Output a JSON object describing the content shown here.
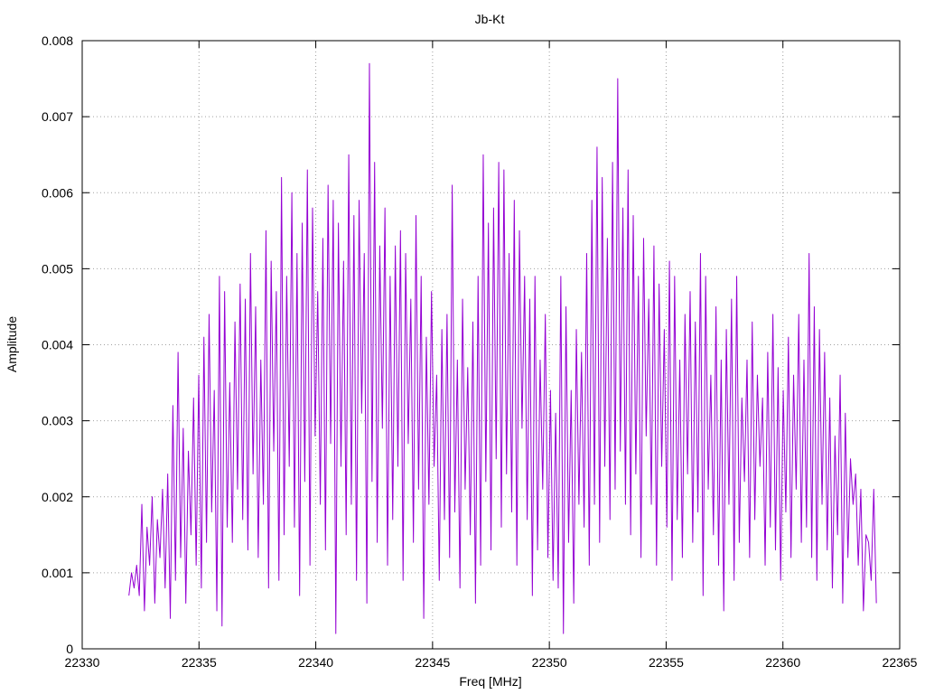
{
  "chart_data": {
    "type": "line",
    "title": "Jb-Kt",
    "xlabel": "Freq [MHz]",
    "ylabel": "Amplitude",
    "xlim": [
      22330,
      22365
    ],
    "ylim": [
      0,
      0.008
    ],
    "x_ticks": [
      "22330",
      "22335",
      "22340",
      "22345",
      "22350",
      "22355",
      "22360",
      "22365"
    ],
    "y_ticks": [
      "0",
      "0.001",
      "0.002",
      "0.003",
      "0.004",
      "0.005",
      "0.006",
      "0.007",
      "0.008"
    ],
    "grid": true,
    "series_color": "#9400d3",
    "x_start": 22332.0,
    "x_end": 22364.0,
    "series": [
      {
        "values": [
          0.0007,
          0.001,
          0.0008,
          0.0011,
          0.0007,
          0.0019,
          0.0005,
          0.0016,
          0.0011,
          0.002,
          0.0006,
          0.0017,
          0.0012,
          0.0021,
          0.0008,
          0.0023,
          0.0004,
          0.0032,
          0.0009,
          0.0039,
          0.0012,
          0.0029,
          0.0006,
          0.0026,
          0.0015,
          0.0033,
          0.0011,
          0.0036,
          0.0008,
          0.0041,
          0.0014,
          0.0044,
          0.0018,
          0.0034,
          0.0005,
          0.0049,
          0.0003,
          0.0047,
          0.0016,
          0.0035,
          0.0014,
          0.0043,
          0.0021,
          0.0048,
          0.0017,
          0.0046,
          0.0013,
          0.0052,
          0.0023,
          0.0045,
          0.0012,
          0.0038,
          0.0019,
          0.0055,
          0.0008,
          0.0051,
          0.0026,
          0.0047,
          0.0009,
          0.0062,
          0.0015,
          0.0049,
          0.0024,
          0.006,
          0.0016,
          0.0052,
          0.0007,
          0.0056,
          0.0022,
          0.0063,
          0.0011,
          0.0058,
          0.0028,
          0.0047,
          0.0019,
          0.0054,
          0.0013,
          0.0061,
          0.0027,
          0.0059,
          0.0002,
          0.0056,
          0.0024,
          0.0051,
          0.0015,
          0.0065,
          0.0019,
          0.0057,
          0.0009,
          0.0059,
          0.0031,
          0.0052,
          0.0006,
          0.0077,
          0.0022,
          0.0064,
          0.0014,
          0.0053,
          0.0029,
          0.0058,
          0.0011,
          0.0049,
          0.0017,
          0.0053,
          0.0024,
          0.0055,
          0.0009,
          0.0052,
          0.0027,
          0.0046,
          0.0014,
          0.0057,
          0.0021,
          0.0049,
          0.0004,
          0.0041,
          0.0019,
          0.0047,
          0.0024,
          0.0036,
          0.0009,
          0.0042,
          0.0017,
          0.0044,
          0.0012,
          0.0061,
          0.0018,
          0.0038,
          0.0008,
          0.0046,
          0.0021,
          0.0037,
          0.0015,
          0.0043,
          0.0006,
          0.0049,
          0.0011,
          0.0065,
          0.0022,
          0.0056,
          0.0013,
          0.0058,
          0.0025,
          0.0064,
          0.0016,
          0.0063,
          0.0023,
          0.0052,
          0.0018,
          0.0059,
          0.0011,
          0.0055,
          0.0029,
          0.0049,
          0.0017,
          0.0046,
          0.0007,
          0.0049,
          0.0013,
          0.0038,
          0.0021,
          0.0044,
          0.0012,
          0.0034,
          0.0009,
          0.0031,
          0.0008,
          0.0049,
          0.0002,
          0.0045,
          0.0014,
          0.0034,
          0.0006,
          0.0042,
          0.0019,
          0.0039,
          0.0016,
          0.0052,
          0.0011,
          0.0059,
          0.0019,
          0.0066,
          0.0014,
          0.0062,
          0.0024,
          0.0054,
          0.0017,
          0.0064,
          0.0021,
          0.0075,
          0.0026,
          0.0058,
          0.0019,
          0.0063,
          0.0015,
          0.0057,
          0.0023,
          0.0049,
          0.0012,
          0.0054,
          0.0028,
          0.0046,
          0.0019,
          0.0053,
          0.0011,
          0.0048,
          0.0024,
          0.0042,
          0.0016,
          0.0051,
          0.0009,
          0.0049,
          0.0017,
          0.0038,
          0.0012,
          0.0044,
          0.0023,
          0.0047,
          0.0014,
          0.0043,
          0.0018,
          0.0052,
          0.0007,
          0.0049,
          0.0021,
          0.0036,
          0.0015,
          0.0045,
          0.0011,
          0.0038,
          0.0005,
          0.0042,
          0.0019,
          0.0046,
          0.0009,
          0.0049,
          0.0014,
          0.0033,
          0.0022,
          0.0038,
          0.0012,
          0.0043,
          0.0017,
          0.0036,
          0.0024,
          0.0033,
          0.0011,
          0.0039,
          0.0016,
          0.0044,
          0.0013,
          0.0037,
          0.0009,
          0.0034,
          0.0018,
          0.0041,
          0.0012,
          0.0036,
          0.0021,
          0.0044,
          0.0014,
          0.0038,
          0.0016,
          0.0052,
          0.0012,
          0.0045,
          0.0009,
          0.0042,
          0.0019,
          0.0039,
          0.0013,
          0.0033,
          0.0008,
          0.0028,
          0.0015,
          0.0036,
          0.0006,
          0.0031,
          0.0012,
          0.0025,
          0.0019,
          0.0023,
          0.0011,
          0.0021,
          0.0005,
          0.0015,
          0.0014,
          0.0009,
          0.0021,
          0.0006
        ]
      }
    ]
  }
}
